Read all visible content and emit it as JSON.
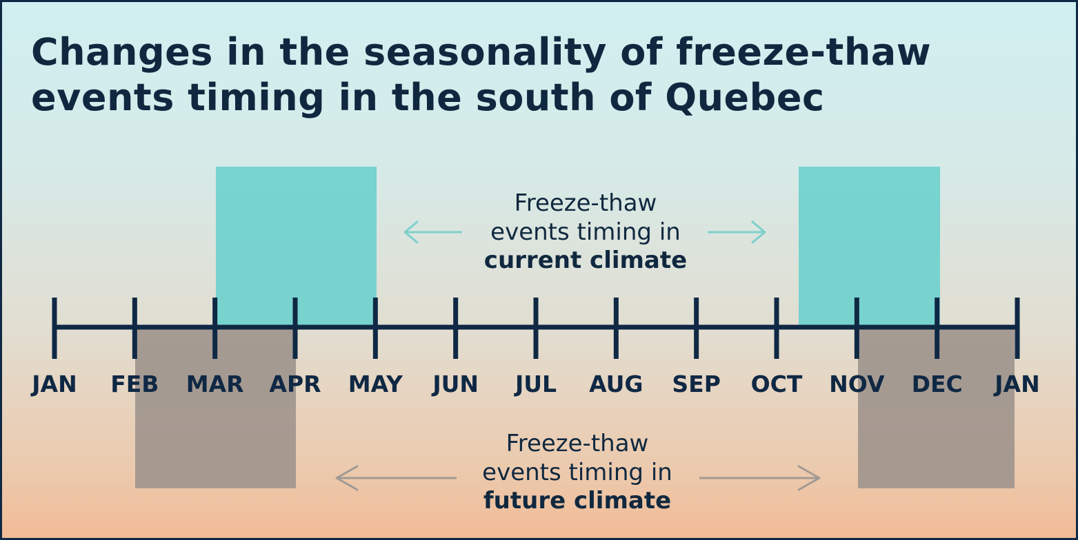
{
  "title": {
    "line1": "Changes in the seasonality of freeze-thaw",
    "line2": "events timing in the south of Quebec"
  },
  "timeline": {
    "months": [
      "JAN",
      "FEB",
      "MAR",
      "APR",
      "MAY",
      "JUN",
      "JUL",
      "AUG",
      "SEP",
      "OCT",
      "NOV",
      "DEC",
      "JAN"
    ]
  },
  "current": {
    "label_line1": "Freeze-thaw",
    "label_line2": "events timing in",
    "label_bold": "current climate",
    "color": "#6fd1cd",
    "periods": [
      {
        "start": "MAR",
        "end": "MAY"
      },
      {
        "start": "OCT (late)",
        "end": "DEC"
      }
    ]
  },
  "future": {
    "label_line1": "Freeze-thaw",
    "label_line2": "events timing in",
    "label_bold": "future climate",
    "color": "#9f958d",
    "periods": [
      {
        "start": "FEB",
        "end": "APR"
      },
      {
        "start": "NOV",
        "end": "JAN"
      }
    ]
  },
  "colors": {
    "axis": "#0f2844",
    "current_arrow": "#7ed0cc",
    "future_arrow": "#a09a94",
    "text": "#10283f"
  }
}
